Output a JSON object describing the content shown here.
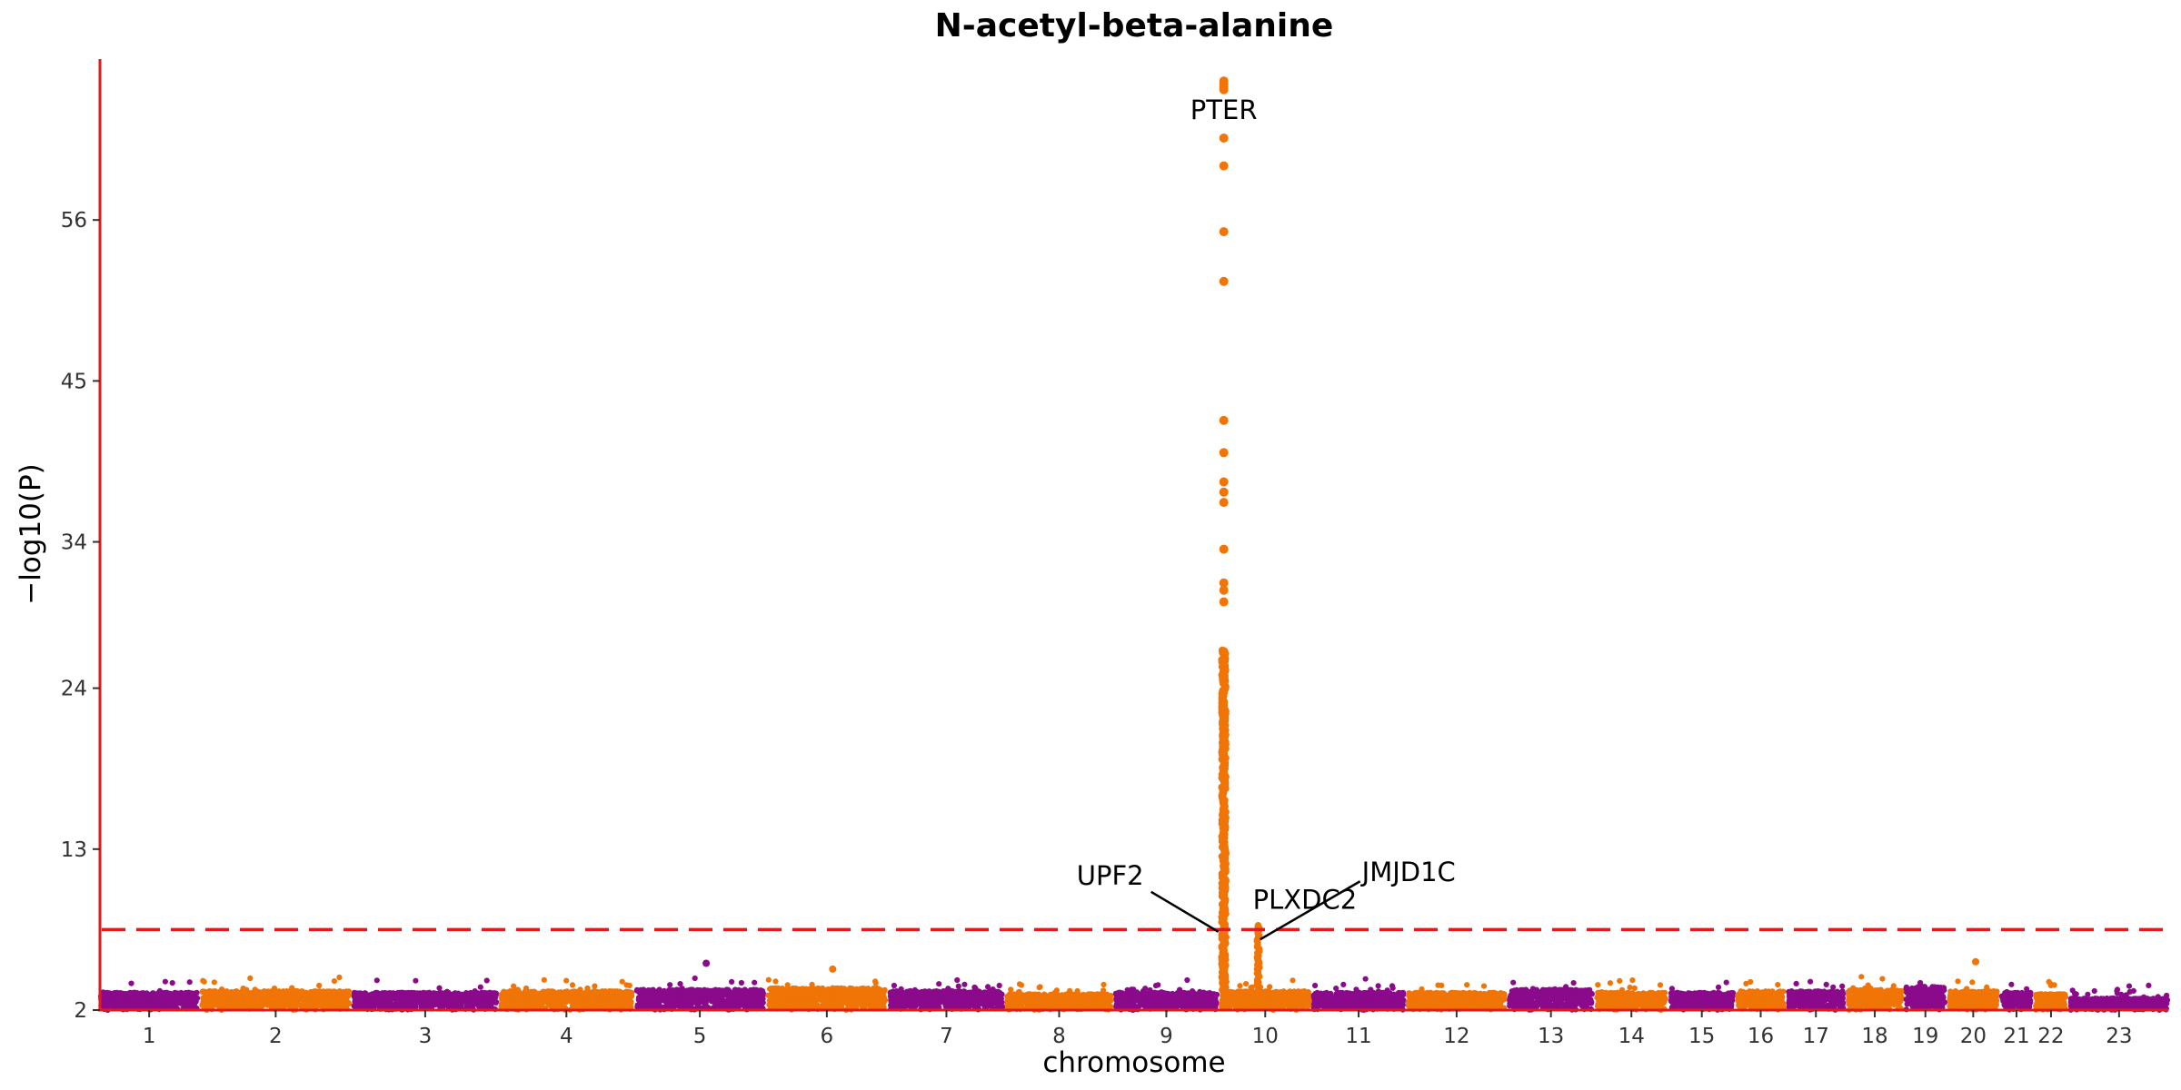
{
  "chart_data": {
    "type": "scatter",
    "title": "N-acetyl-beta-alanine",
    "xlabel": "chromosome",
    "ylabel": "−log10(P)",
    "ylim": [
      2,
      67
    ],
    "yticks": [
      2,
      13,
      24,
      34,
      45,
      56
    ],
    "significance_threshold": 7.5,
    "colors": {
      "odd": "#8b0a8b",
      "even": "#f07406",
      "axis": "#e31a1c",
      "threshold": "#e31a1c"
    },
    "chromosomes": [
      {
        "label": "1",
        "color": "odd",
        "baseline": 3.2
      },
      {
        "label": "2",
        "color": "even",
        "baseline": 3.3
      },
      {
        "label": "3",
        "color": "odd",
        "baseline": 3.2
      },
      {
        "label": "4",
        "color": "even",
        "baseline": 3.3
      },
      {
        "label": "5",
        "color": "odd",
        "baseline": 3.4
      },
      {
        "label": "6",
        "color": "even",
        "baseline": 3.5
      },
      {
        "label": "7",
        "color": "odd",
        "baseline": 3.3
      },
      {
        "label": "8",
        "color": "even",
        "baseline": 3.1
      },
      {
        "label": "9",
        "color": "odd",
        "baseline": 3.2
      },
      {
        "label": "10",
        "color": "even",
        "baseline": 3.3
      },
      {
        "label": "11",
        "color": "odd",
        "baseline": 3.2
      },
      {
        "label": "12",
        "color": "even",
        "baseline": 3.2
      },
      {
        "label": "13",
        "color": "odd",
        "baseline": 3.4
      },
      {
        "label": "14",
        "color": "even",
        "baseline": 3.2
      },
      {
        "label": "15",
        "color": "odd",
        "baseline": 3.2
      },
      {
        "label": "16",
        "color": "even",
        "baseline": 3.3
      },
      {
        "label": "17",
        "color": "odd",
        "baseline": 3.3
      },
      {
        "label": "18",
        "color": "even",
        "baseline": 3.4
      },
      {
        "label": "19",
        "color": "odd",
        "baseline": 3.6
      },
      {
        "label": "20",
        "color": "even",
        "baseline": 3.3
      },
      {
        "label": "21",
        "color": "odd",
        "baseline": 3.2
      },
      {
        "label": "22",
        "color": "even",
        "baseline": 3.1
      },
      {
        "label": "23",
        "color": "odd",
        "baseline": 2.8
      }
    ],
    "peaks": [
      {
        "gene": "PTER",
        "chromosome": "9",
        "max_y": 65.5,
        "top_hits": [
          65.5,
          65.3,
          65.1,
          64.9,
          61.6,
          59.7,
          55.2,
          51.8,
          42.3,
          40.1,
          38.1,
          37.4,
          36.7,
          33.5,
          31.2,
          30.7,
          29.9,
          26.5
        ]
      },
      {
        "gene": "UPF2",
        "chromosome": "9",
        "max_y": 7.6
      },
      {
        "gene": "PLXDC2",
        "chromosome": "10",
        "max_y": 7.8
      },
      {
        "gene": "JMJD1C",
        "chromosome": "10",
        "max_y": 7.2
      }
    ],
    "minor_hits": [
      {
        "chromosome": "5",
        "y": 5.2
      },
      {
        "chromosome": "6",
        "y": 4.8
      },
      {
        "chromosome": "20",
        "y": 5.3
      }
    ]
  }
}
